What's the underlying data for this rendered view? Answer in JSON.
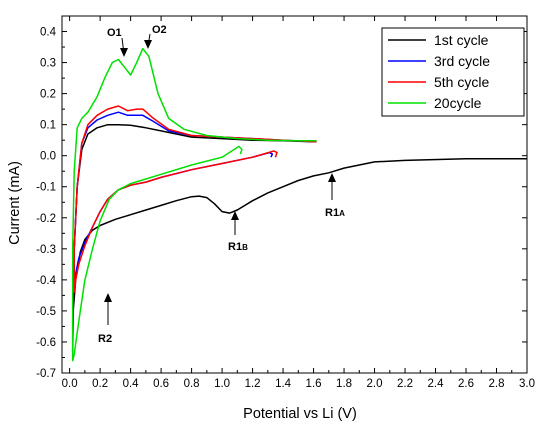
{
  "chart_data": {
    "type": "line",
    "xlabel": "Potential vs Li (V)",
    "ylabel": "Current  (mA)",
    "xlim": [
      -0.05,
      3.0
    ],
    "ylim": [
      -0.7,
      0.45
    ],
    "x_ticks": [
      "0.0",
      "0.2",
      "0.4",
      "0.6",
      "0.8",
      "1.0",
      "1.2",
      "1.4",
      "1.6",
      "1.8",
      "2.0",
      "2.2",
      "2.4",
      "2.6",
      "2.8",
      "3.0"
    ],
    "y_ticks": [
      "0.4",
      "0.3",
      "0.2",
      "0.1",
      "0.0",
      "-0.1",
      "-0.2",
      "-0.3",
      "-0.4",
      "-0.5",
      "-0.6",
      "-0.7"
    ],
    "x_tick_values": [
      0.0,
      0.2,
      0.4,
      0.6,
      0.8,
      1.0,
      1.2,
      1.4,
      1.6,
      1.8,
      2.0,
      2.2,
      2.4,
      2.6,
      2.8,
      3.0
    ],
    "y_tick_values": [
      0.4,
      0.3,
      0.2,
      0.1,
      0.0,
      -0.1,
      -0.2,
      -0.3,
      -0.4,
      -0.5,
      -0.6,
      -0.7
    ],
    "legend_position": "top-right",
    "series": [
      {
        "name": "1st cycle",
        "color": "#000000",
        "x": [
          3.0,
          2.6,
          2.2,
          2.0,
          1.8,
          1.7,
          1.6,
          1.5,
          1.4,
          1.3,
          1.2,
          1.1,
          1.05,
          1.0,
          0.95,
          0.9,
          0.85,
          0.8,
          0.7,
          0.6,
          0.5,
          0.4,
          0.3,
          0.2,
          0.15,
          0.1,
          0.07,
          0.04,
          0.02,
          0.02,
          0.03,
          0.05,
          0.08,
          0.12,
          0.18,
          0.25,
          0.32,
          0.4,
          0.5,
          0.6,
          0.8,
          1.0,
          1.2,
          1.4,
          1.6
        ],
        "y": [
          -0.01,
          -0.01,
          -0.015,
          -0.02,
          -0.04,
          -0.055,
          -0.065,
          -0.08,
          -0.1,
          -0.12,
          -0.145,
          -0.175,
          -0.185,
          -0.18,
          -0.155,
          -0.135,
          -0.13,
          -0.132,
          -0.145,
          -0.16,
          -0.175,
          -0.19,
          -0.205,
          -0.225,
          -0.24,
          -0.27,
          -0.31,
          -0.4,
          -0.52,
          -0.63,
          -0.3,
          -0.1,
          0.02,
          0.07,
          0.09,
          0.1,
          0.1,
          0.098,
          0.09,
          0.08,
          0.06,
          0.055,
          0.05,
          0.048,
          0.045
        ]
      },
      {
        "name": "3rd cycle",
        "color": "#0000ff",
        "x": [
          1.32,
          1.33,
          1.31,
          1.2,
          1.0,
          0.8,
          0.6,
          0.5,
          0.4,
          0.32,
          0.25,
          0.2,
          0.15,
          0.1,
          0.06,
          0.04,
          0.03,
          0.03,
          0.05,
          0.08,
          0.12,
          0.18,
          0.25,
          0.32,
          0.38,
          0.44,
          0.48,
          0.55,
          0.65,
          0.8,
          1.0,
          1.2,
          1.4,
          1.62
        ],
        "y": [
          -0.005,
          0.005,
          0.01,
          -0.005,
          -0.025,
          -0.045,
          -0.07,
          -0.085,
          -0.095,
          -0.11,
          -0.14,
          -0.18,
          -0.23,
          -0.28,
          -0.33,
          -0.38,
          -0.42,
          -0.3,
          -0.1,
          0.04,
          0.09,
          0.115,
          0.13,
          0.14,
          0.13,
          0.13,
          0.13,
          0.11,
          0.08,
          0.065,
          0.06,
          0.055,
          0.05,
          0.045
        ]
      },
      {
        "name": "5th cycle",
        "color": "#ff0000",
        "x": [
          1.35,
          1.36,
          1.34,
          1.2,
          1.0,
          0.8,
          0.6,
          0.5,
          0.4,
          0.32,
          0.25,
          0.2,
          0.15,
          0.1,
          0.06,
          0.04,
          0.03,
          0.03,
          0.05,
          0.08,
          0.12,
          0.18,
          0.25,
          0.32,
          0.38,
          0.44,
          0.48,
          0.55,
          0.65,
          0.8,
          1.0,
          1.2,
          1.4,
          1.62
        ],
        "y": [
          -0.005,
          0.01,
          0.015,
          -0.005,
          -0.025,
          -0.045,
          -0.07,
          -0.085,
          -0.095,
          -0.11,
          -0.14,
          -0.18,
          -0.23,
          -0.29,
          -0.35,
          -0.4,
          -0.44,
          -0.3,
          -0.1,
          0.04,
          0.1,
          0.13,
          0.15,
          0.16,
          0.145,
          0.15,
          0.15,
          0.12,
          0.085,
          0.065,
          0.06,
          0.055,
          0.05,
          0.045
        ]
      },
      {
        "name": "20cycle",
        "color": "#00e000",
        "x": [
          1.12,
          1.13,
          1.11,
          1.0,
          0.8,
          0.6,
          0.5,
          0.4,
          0.32,
          0.26,
          0.2,
          0.15,
          0.1,
          0.07,
          0.05,
          0.03,
          0.02,
          0.02,
          0.03,
          0.05,
          0.08,
          0.12,
          0.18,
          0.23,
          0.28,
          0.32,
          0.36,
          0.4,
          0.44,
          0.48,
          0.52,
          0.58,
          0.65,
          0.75,
          0.9,
          1.1,
          1.3,
          1.5,
          1.62
        ],
        "y": [
          0.005,
          0.02,
          0.03,
          -0.005,
          -0.03,
          -0.06,
          -0.075,
          -0.09,
          -0.11,
          -0.14,
          -0.21,
          -0.3,
          -0.4,
          -0.5,
          -0.57,
          -0.64,
          -0.66,
          -0.3,
          -0.05,
          0.09,
          0.12,
          0.14,
          0.19,
          0.25,
          0.3,
          0.31,
          0.285,
          0.26,
          0.3,
          0.345,
          0.32,
          0.2,
          0.12,
          0.085,
          0.065,
          0.055,
          0.05,
          0.048,
          0.048
        ]
      }
    ],
    "annotations": [
      {
        "text": "O1",
        "sub": ""
      },
      {
        "text": "O2",
        "sub": ""
      },
      {
        "text": "R1",
        "sub": "A"
      },
      {
        "text": "R1",
        "sub": "B"
      },
      {
        "text": "R2",
        "sub": ""
      }
    ]
  }
}
